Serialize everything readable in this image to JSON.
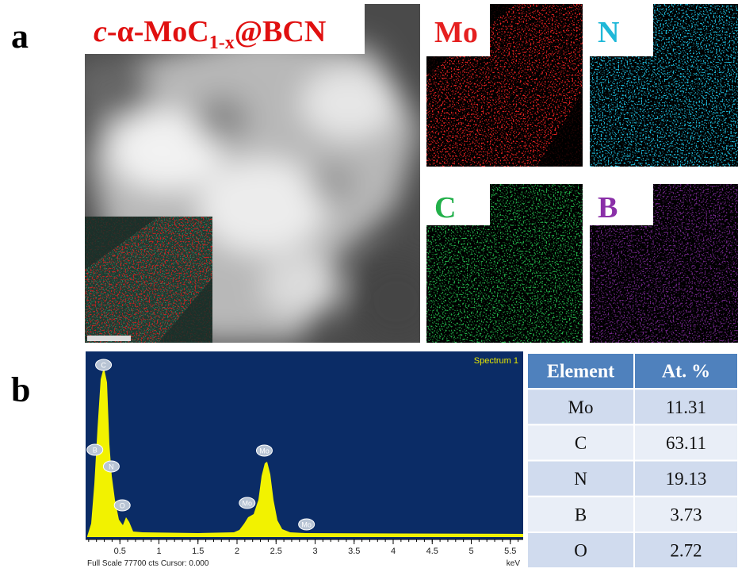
{
  "panel_a": {
    "label": "a",
    "title": {
      "italic": "c",
      "main": "-α-MoC",
      "sub": "1-x",
      "suffix": "@BCN"
    },
    "maps": [
      {
        "label": "Mo",
        "color": "#e52020"
      },
      {
        "label": "N",
        "color": "#1fb8d8"
      },
      {
        "label": "C",
        "color": "#22b04a"
      },
      {
        "label": "B",
        "color": "#8a2fa8"
      }
    ]
  },
  "panel_b": {
    "label": "b",
    "spectrum": {
      "title": "Spectrum 1",
      "xticks": [
        0.5,
        1,
        1.5,
        2,
        2.5,
        3,
        3.5,
        4,
        4.5,
        5,
        5.5
      ],
      "unit": "keV",
      "footer": "Full Scale 77700 cts Cursor: 0.000",
      "peaks": [
        {
          "label": "C",
          "x": 0.29
        },
        {
          "label": "B",
          "x": 0.18
        },
        {
          "label": "N",
          "x": 0.39
        },
        {
          "label": "O",
          "x": 0.53
        },
        {
          "label": "Mo",
          "x": 2.13
        },
        {
          "label": "Mo",
          "x": 2.35
        },
        {
          "label": "Mo",
          "x": 2.89
        }
      ]
    },
    "table": {
      "header": [
        "Element",
        "At. %"
      ],
      "rows": [
        [
          "Mo",
          "11.31"
        ],
        [
          "C",
          "63.11"
        ],
        [
          "N",
          "19.13"
        ],
        [
          "B",
          "3.73"
        ],
        [
          "O",
          "2.72"
        ]
      ]
    }
  }
}
